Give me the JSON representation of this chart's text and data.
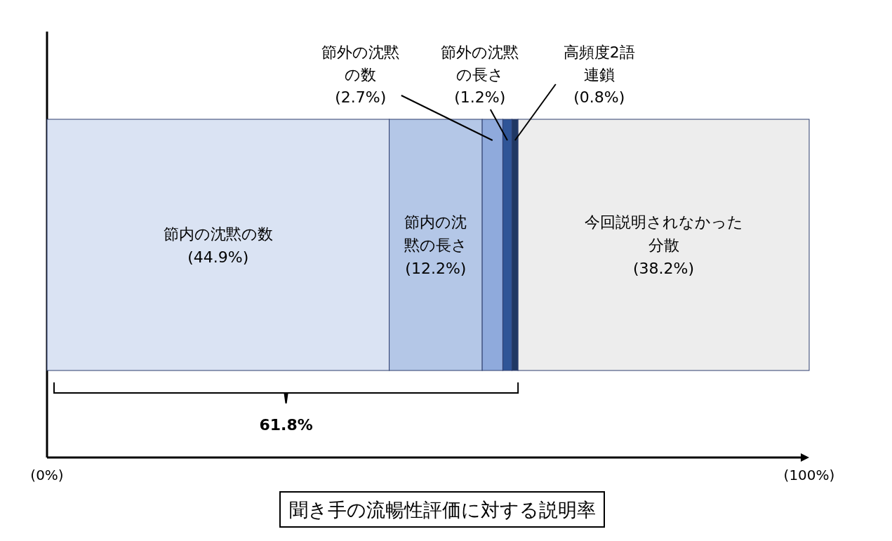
{
  "chart_data": {
    "type": "bar",
    "orientation": "horizontal",
    "stacked": true,
    "categories": [
      null
    ],
    "series": [
      {
        "name": "節内の沈黙の数",
        "color": "#dae3f3",
        "values": [
          44.9
        ],
        "value_labels": [
          "(44.9%)"
        ]
      },
      {
        "name": "節内の沈黙の長さ",
        "color": "#b4c7e7",
        "values": [
          12.2
        ],
        "value_labels": [
          "(12.2%)"
        ]
      },
      {
        "name": "節外の沈黙の数",
        "color": "#8faadc",
        "values": [
          2.7
        ],
        "value_labels": [
          "(2.7%)"
        ]
      },
      {
        "name": "節外の沈黙の長さ",
        "color": "#2f5597",
        "values": [
          1.2
        ],
        "value_labels": [
          "(1.2%)"
        ]
      },
      {
        "name": "高頻度2語連鎖",
        "color": "#203864",
        "values": [
          0.8
        ],
        "value_labels": [
          "(0.8%)"
        ]
      },
      {
        "name": "今回説明されなかった分散",
        "color": "#ededed",
        "values": [
          38.2
        ],
        "value_labels": [
          "(38.2%)"
        ]
      }
    ],
    "xlim": [
      0,
      100
    ],
    "xticks": [
      {
        "value": 0,
        "label": "(0%)"
      },
      {
        "value": 100,
        "label": "(100%)"
      }
    ],
    "xlabel": "聞き手の流暢性評価に対する説明率",
    "annotations": [
      "61.8%"
    ]
  }
}
